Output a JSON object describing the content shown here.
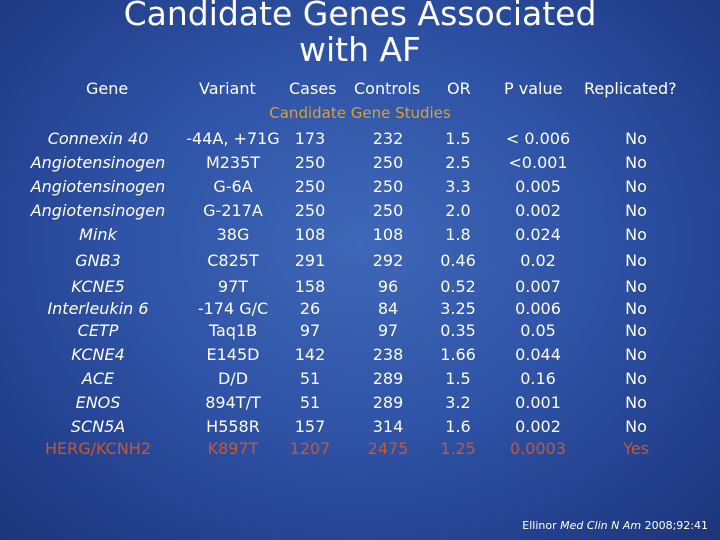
{
  "title_line1": "Candidate Genes Associated",
  "title_line2": "with AF",
  "headers": {
    "gene": "Gene",
    "variant": "Variant",
    "cases": "Cases",
    "controls": "Controls",
    "or": "OR",
    "pvalue": "P value",
    "replicated": "Replicated?"
  },
  "subheader": "Candidate Gene Studies",
  "rows": [
    {
      "gene": "Connexin 40",
      "variant": "-44A, +71G",
      "cases": "173",
      "controls": "232",
      "or": "1.5",
      "p": "< 0.006",
      "rep": "No"
    },
    {
      "gene": "Angiotensinogen",
      "variant": "M235T",
      "cases": "250",
      "controls": "250",
      "or": "2.5",
      "p": "<0.001",
      "rep": "No"
    },
    {
      "gene": "Angiotensinogen",
      "variant": "G-6A",
      "cases": "250",
      "controls": "250",
      "or": "3.3",
      "p": "0.005",
      "rep": "No"
    },
    {
      "gene": "Angiotensinogen",
      "variant": "G-217A",
      "cases": "250",
      "controls": "250",
      "or": "2.0",
      "p": "0.002",
      "rep": "No"
    },
    {
      "gene": "Mink",
      "variant": "38G",
      "cases": "108",
      "controls": "108",
      "or": "1.8",
      "p": "0.024",
      "rep": "No"
    },
    {
      "gene": "GNB3",
      "variant": "C825T",
      "cases": "291",
      "controls": "292",
      "or": "0.46",
      "p": "0.02",
      "rep": "No"
    },
    {
      "gene": "KCNE5",
      "variant": "97T",
      "cases": "158",
      "controls": "96",
      "or": "0.52",
      "p": "0.007",
      "rep": "No"
    },
    {
      "gene": "Interleukin 6",
      "variant": "-174 G/C",
      "cases": "26",
      "controls": "84",
      "or": "3.25",
      "p": "0.006",
      "rep": "No"
    },
    {
      "gene": "CETP",
      "variant": "Taq1B",
      "cases": "97",
      "controls": "97",
      "or": "0.35",
      "p": "0.05",
      "rep": "No"
    },
    {
      "gene": "KCNE4",
      "variant": "E145D",
      "cases": "142",
      "controls": "238",
      "or": "1.66",
      "p": "0.044",
      "rep": "No"
    },
    {
      "gene": "ACE",
      "variant": "D/D",
      "cases": "51",
      "controls": "289",
      "or": "1.5",
      "p": "0.16",
      "rep": "No"
    },
    {
      "gene": "ENOS",
      "variant": "894T/T",
      "cases": "51",
      "controls": "289",
      "or": "3.2",
      "p": "0.001",
      "rep": "No"
    },
    {
      "gene": "SCN5A",
      "variant": "H558R",
      "cases": "157",
      "controls": "314",
      "or": "1.6",
      "p": "0.002",
      "rep": "No"
    },
    {
      "gene": "HERG/KCNH2",
      "variant": "K897T",
      "cases": "1207",
      "controls": "2475",
      "or": "1.25",
      "p": "0.0003",
      "rep": "Yes",
      "highlight": true
    }
  ],
  "citation": {
    "author": "Ellinor",
    "journal": "Med Clin N Am",
    "ref": "2008;92:41"
  },
  "colors": {
    "highlight": "#c25a35",
    "subheader": "#d8a03a"
  }
}
